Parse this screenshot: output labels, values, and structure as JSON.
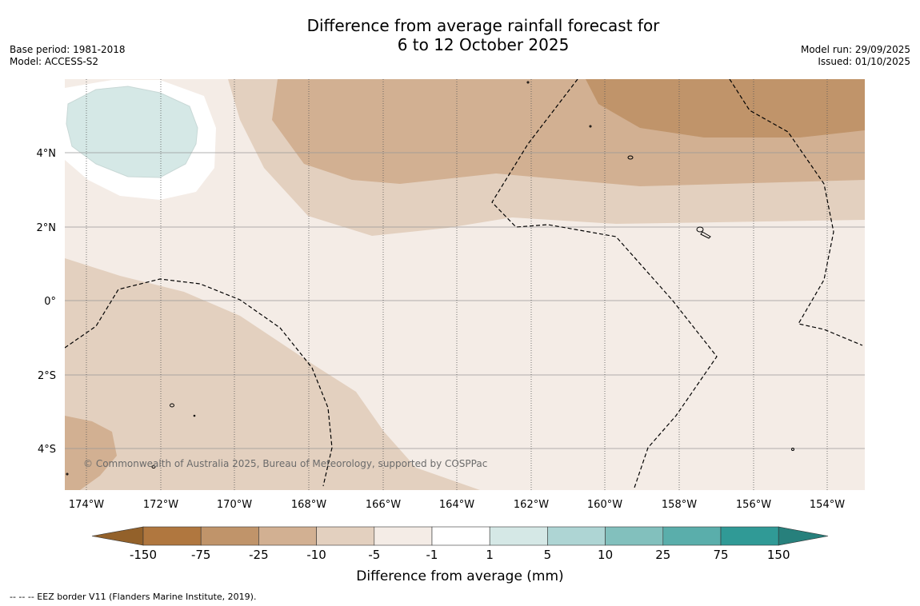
{
  "title_line1": "Difference from average rainfall forecast for",
  "title_line2": "6 to 12 October 2025",
  "base_period": "Base period: 1981-2018",
  "model": "Model: ACCESS-S2",
  "model_run": "Model run: 29/09/2025",
  "issued": "Issued: 01/10/2025",
  "copyright": "© Commonwealth of Australia 2025, Bureau of Meteorology, supported by COSPPac",
  "lon_labels": [
    "174°W",
    "172°W",
    "170°W",
    "168°W",
    "166°W",
    "164°W",
    "162°W",
    "160°W",
    "158°W",
    "156°W",
    "154°W"
  ],
  "lat_labels": [
    "4°N",
    "2°N",
    "0°",
    "2°S",
    "4°S"
  ],
  "colorbar": {
    "label": "Difference from average (mm)",
    "ticks": [
      "-150",
      "-75",
      "-25",
      "-10",
      "-5",
      "-1",
      "1",
      "5",
      "10",
      "25",
      "75",
      "150"
    ],
    "colors": [
      "#b0773f",
      "#c0946a",
      "#d2b092",
      "#e3d0bf",
      "#f4ece6",
      "#ffffff",
      "#d5e8e6",
      "#aed5d4",
      "#82c0bd",
      "#5aaeab",
      "#309a96"
    ],
    "low_extend_color": "#93612a",
    "high_extend_color": "#27807c"
  },
  "footer": "--  --  -- EEZ border V11 (Flanders Marine Institute, 2019)."
}
